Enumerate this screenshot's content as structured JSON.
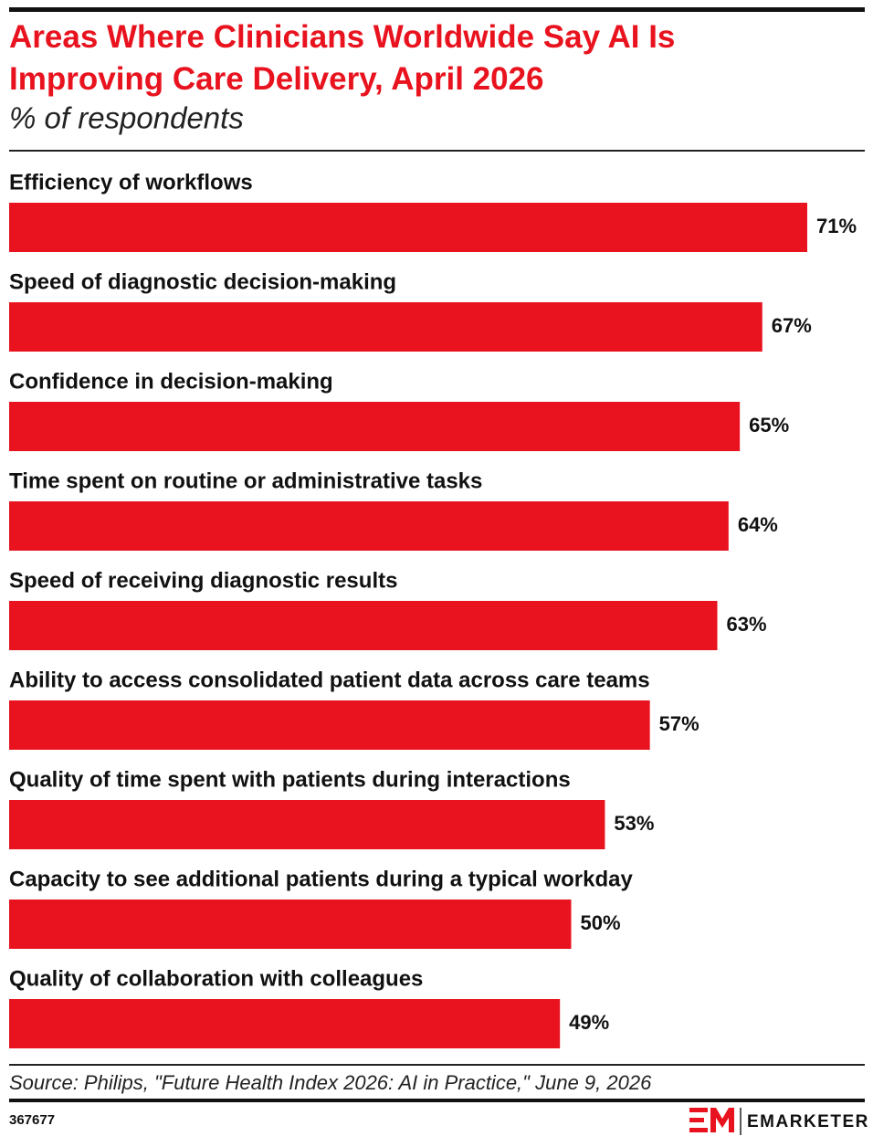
{
  "chart_data": {
    "type": "bar",
    "title": "Areas Where Clinicians Worldwide Say AI Is Improving Care Delivery, April 2026",
    "subtitle": "% of respondents",
    "categories": [
      "Efficiency of workflows",
      "Speed of diagnostic decision-making",
      "Confidence in decision-making",
      "Time spent on routine or administrative tasks",
      "Speed of receiving diagnostic results",
      "Ability to access consolidated patient data across care teams",
      "Quality of time spent with patients during interactions",
      "Capacity to see additional patients during a typical workday",
      "Quality of collaboration with colleagues"
    ],
    "values": [
      71,
      67,
      65,
      64,
      63,
      57,
      53,
      50,
      49
    ],
    "value_labels": [
      "71%",
      "67%",
      "65%",
      "64%",
      "63%",
      "57%",
      "53%",
      "50%",
      "49%"
    ],
    "color": "#e8131e",
    "source": "Source: Philips, \"Future Health Index 2026: AI in Practice,\" June 9, 2026",
    "chart_id": "367677",
    "brand": "EMARKETER"
  }
}
